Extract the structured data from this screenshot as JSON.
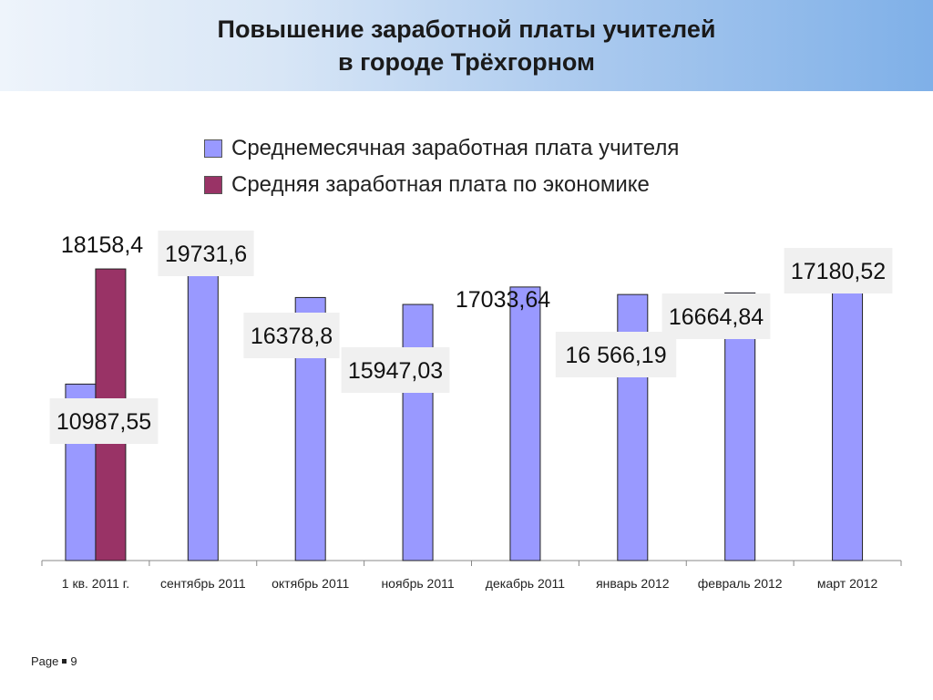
{
  "slide": {
    "title_line1": "Повышение заработной платы учителей",
    "title_line2": "в городе Трёхгорном",
    "footer_page_label": "Page",
    "footer_page_number": "9"
  },
  "chart_data": {
    "type": "bar",
    "title": "",
    "xlabel": "",
    "ylabel": "",
    "ylim": [
      0,
      21000
    ],
    "grid": false,
    "legend_placement": "top",
    "categories": [
      "1 кв. 2011 г.",
      "сентябрь 2011",
      "октябрь 2011",
      "ноябрь 2011",
      "декабрь 2011",
      "январь 2012",
      "февраль 2012",
      "март 2012"
    ],
    "series": [
      {
        "name": "Среднемесячная заработная плата учителя",
        "color": "#9999ff",
        "values": [
          10987.55,
          19731.6,
          16378.8,
          15947.03,
          17033.64,
          16566.19,
          16664.84,
          17180.52
        ],
        "labels": [
          "10987,55",
          "19731,6",
          "16378,8",
          "15947,03",
          "17033,64",
          "16 566,19",
          "16664,84",
          "17180,52"
        ]
      },
      {
        "name": "Средняя заработная плата по экономике",
        "color": "#993366",
        "values": [
          18158.4,
          null,
          null,
          null,
          null,
          null,
          null,
          null
        ],
        "labels": [
          "18158,4",
          null,
          null,
          null,
          null,
          null,
          null,
          null
        ]
      }
    ]
  }
}
